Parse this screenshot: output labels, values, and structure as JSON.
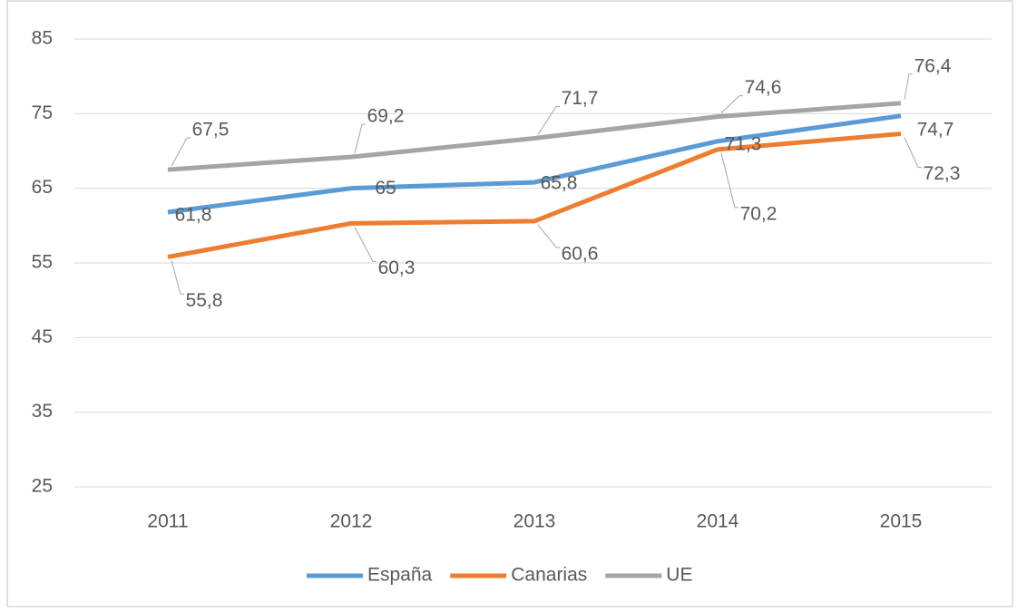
{
  "chart_data": {
    "type": "line",
    "categories": [
      "2011",
      "2012",
      "2013",
      "2014",
      "2015"
    ],
    "series": [
      {
        "name": "España",
        "color": "#5b9bd5",
        "values": [
          61.8,
          65,
          65.8,
          71.3,
          74.7
        ],
        "value_labels": [
          "61,8",
          "65",
          "65,8",
          "71,3",
          "74,7"
        ]
      },
      {
        "name": "Canarias",
        "color": "#ed7d31",
        "values": [
          55.8,
          60.3,
          60.6,
          70.2,
          72.3
        ],
        "value_labels": [
          "55,8",
          "60,3",
          "60,6",
          "70,2",
          "72,3"
        ]
      },
      {
        "name": "UE",
        "color": "#a5a5a5",
        "values": [
          67.5,
          69.2,
          71.7,
          74.6,
          76.4
        ],
        "value_labels": [
          "67,5",
          "69,2",
          "71,7",
          "74,6",
          "76,4"
        ]
      }
    ],
    "ylim": [
      25,
      85
    ],
    "yticks": [
      25,
      35,
      45,
      55,
      65,
      75,
      85
    ],
    "grid": true,
    "legend": "bottom"
  }
}
